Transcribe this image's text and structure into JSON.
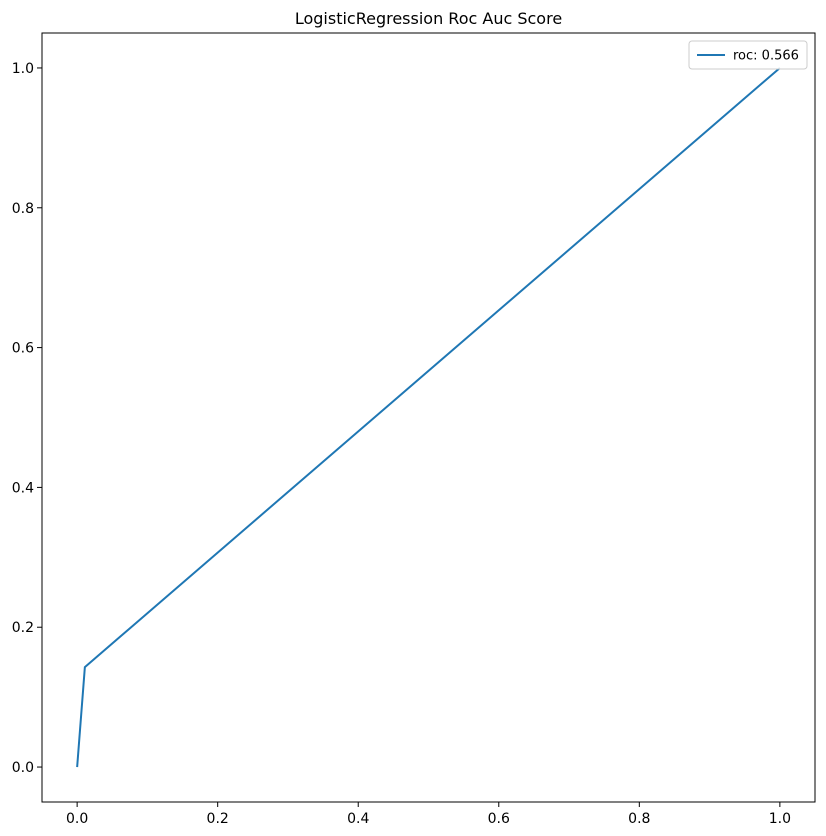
{
  "chart_data": {
    "type": "line",
    "title": "LogisticRegression Roc Auc Score",
    "xlabel": "",
    "ylabel": "",
    "xlim": [
      -0.05,
      1.05
    ],
    "ylim": [
      -0.05,
      1.05
    ],
    "xticks": [
      0.0,
      0.2,
      0.4,
      0.6,
      0.8,
      1.0
    ],
    "yticks": [
      0.0,
      0.2,
      0.4,
      0.6,
      0.8,
      1.0
    ],
    "xtick_labels": [
      "0.0",
      "0.2",
      "0.4",
      "0.6",
      "0.8",
      "1.0"
    ],
    "ytick_labels": [
      "0.0",
      "0.2",
      "0.4",
      "0.6",
      "0.8",
      "1.0"
    ],
    "grid": false,
    "legend_position": "top-right",
    "series": [
      {
        "name": "roc: 0.566",
        "color": "#1f77b4",
        "x": [
          0.0,
          0.011,
          1.0
        ],
        "y": [
          0.0,
          0.143,
          1.0
        ]
      }
    ]
  }
}
